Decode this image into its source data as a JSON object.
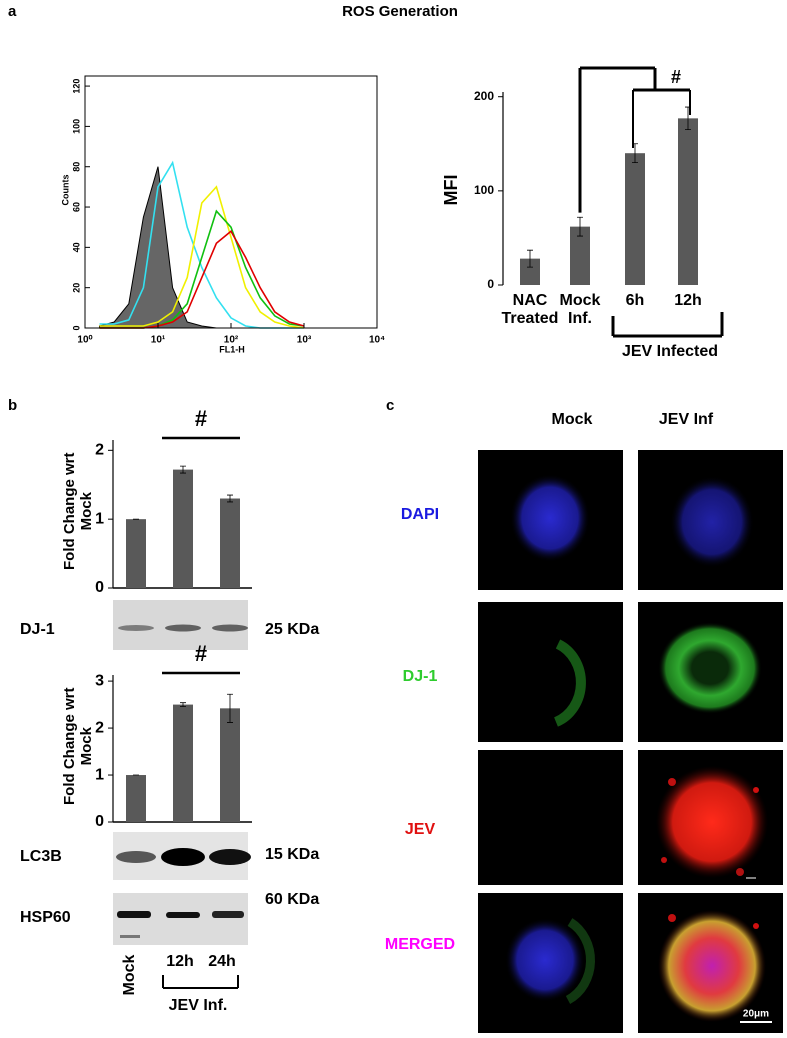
{
  "title": "ROS Generation",
  "panel_labels": [
    "a",
    "b",
    "c"
  ],
  "chart_data": [
    {
      "type": "line",
      "xlabel": "FL1-H",
      "ylabel": "Counts",
      "log_x": true,
      "xlim": [
        1,
        10000
      ],
      "xticks": [
        {
          "value": 1,
          "label": "10⁰"
        },
        {
          "value": 10,
          "label": "10¹"
        },
        {
          "value": 100,
          "label": "10²"
        },
        {
          "value": 1000,
          "label": "10³"
        },
        {
          "value": 10000,
          "label": "10⁴"
        }
      ],
      "ylim": [
        0,
        125
      ],
      "yticks": [
        0,
        20,
        40,
        60,
        80,
        100,
        120
      ],
      "x": [
        1.58,
        2.51,
        3.98,
        6.31,
        10,
        15.85,
        25.12,
        39.81,
        63.1,
        100,
        158.5,
        251.2,
        398.1,
        631,
        1000
      ],
      "series": [
        {
          "color": "#000000",
          "fill": "#666666",
          "values": [
            1,
            3,
            12,
            55,
            80,
            20,
            3,
            1,
            0,
            0,
            0,
            0,
            0,
            0,
            0
          ]
        },
        {
          "color": "#33e0f0",
          "values": [
            2,
            2,
            4,
            20,
            70,
            82,
            50,
            30,
            15,
            5,
            1,
            0,
            0,
            0,
            0
          ]
        },
        {
          "color": "#f0f000",
          "values": [
            1,
            1,
            1,
            1,
            3,
            8,
            25,
            62,
            70,
            45,
            20,
            8,
            3,
            1,
            0
          ]
        },
        {
          "color": "#10c010",
          "values": [
            0,
            0,
            0,
            0,
            1,
            4,
            12,
            35,
            58,
            50,
            30,
            15,
            6,
            2,
            1
          ]
        },
        {
          "color": "#e00000",
          "values": [
            0,
            0,
            0,
            0,
            1,
            3,
            8,
            25,
            42,
            48,
            35,
            20,
            8,
            3,
            1
          ]
        }
      ]
    },
    {
      "type": "bar",
      "ylabel": "MFI",
      "categories": [
        "NAC Treated",
        "Mock Inf.",
        "6h",
        "12h"
      ],
      "values": [
        28,
        62,
        140,
        177
      ],
      "errors": [
        9,
        10,
        10,
        12
      ],
      "color": "#595959",
      "ylim": [
        0,
        205
      ],
      "yticks": [
        0,
        100,
        200
      ],
      "annotation": "#",
      "group_label": "JEV Infected"
    },
    {
      "type": "bar",
      "ylabel": "Fold Change wrt Mock",
      "categories": [
        null,
        null,
        null
      ],
      "values": [
        1,
        1.72,
        1.3
      ],
      "errors": [
        0,
        0.05,
        0.05
      ],
      "color": "#595959",
      "ylim": [
        0,
        2.15
      ],
      "yticks": [
        0,
        1,
        2
      ],
      "annotation": "#"
    },
    {
      "type": "bar",
      "ylabel": "Fold Change wrt Mock",
      "categories": [
        null,
        null,
        null
      ],
      "values": [
        1,
        2.5,
        2.42
      ],
      "errors": [
        0,
        0.04,
        0.3
      ],
      "color": "#595959",
      "ylim": [
        0,
        3.13
      ],
      "yticks": [
        0,
        1,
        2,
        3
      ],
      "annotation": "#"
    }
  ],
  "panel_b": {
    "blots": [
      {
        "label": "DJ-1",
        "size": "25 KDa"
      },
      {
        "label": "LC3B",
        "size": "15 KDa"
      },
      {
        "label": "HSP60",
        "size": "60 KDa"
      }
    ],
    "lanes": [
      "Mock",
      "12h",
      "24h"
    ],
    "group_label": "JEV Inf."
  },
  "panel_c": {
    "columns": [
      "Mock",
      "JEV Inf"
    ],
    "rows": [
      "DAPI",
      "DJ-1",
      "JEV",
      "MERGED"
    ],
    "scale_bar": "20μm"
  }
}
